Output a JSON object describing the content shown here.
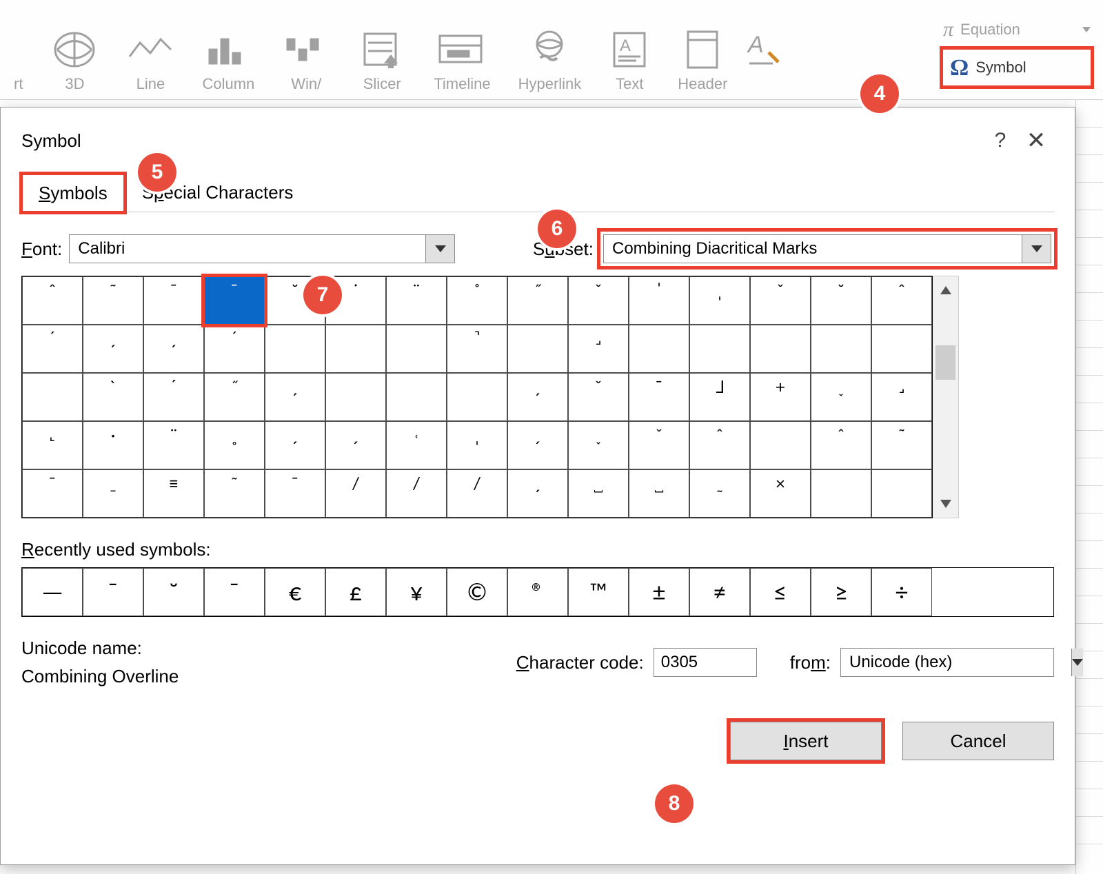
{
  "ribbon": {
    "groups": [
      {
        "label": "rt"
      },
      {
        "label": "3D"
      },
      {
        "label": "Line"
      },
      {
        "label": "Column"
      },
      {
        "label": "Win/"
      },
      {
        "label": "Slicer"
      },
      {
        "label": "Timeline"
      },
      {
        "label": "Hyperlink"
      },
      {
        "label": "Text"
      },
      {
        "label": "Header"
      }
    ],
    "equation_label": "Equation",
    "symbol_label": "Symbol"
  },
  "dialog": {
    "title": "Symbol",
    "tabs": {
      "symbols": "Symbols",
      "special": "Special Characters"
    },
    "font_label": "Font:",
    "font_value": "Calibri",
    "subset_label": "Subset:",
    "subset_value": "Combining Diacritical Marks",
    "grid_chars": [
      "ˆ",
      "˜",
      "ˉ",
      "ˉ",
      "˘",
      "˙",
      "¨",
      "˚",
      "˝",
      "ˇ",
      "ˈ",
      "ˌ",
      "ˇ",
      "˘",
      "ˆ",
      "ˊ",
      "ˏ",
      "ˏ",
      "ˊ",
      "",
      "",
      "",
      "˺",
      "",
      "˼",
      "",
      "",
      "",
      "",
      "",
      "",
      "ˋ",
      "ˊ",
      "˝",
      "ˏ",
      "",
      "",
      "",
      "ˏ",
      "ˬ",
      "ˉ",
      "˩",
      "+",
      "˯",
      "˼",
      "˻",
      "·",
      "¨",
      "˳",
      "ˏ",
      "ˏ",
      "˓",
      "ˌ",
      "ˏ",
      "˯",
      "ˇ",
      "ˆ",
      "",
      "ˆ",
      "˜",
      "ˉ",
      "ˍ",
      "≡",
      "˜",
      "ˉ",
      "/",
      "/",
      "/",
      "ˏ",
      "˽",
      "˽",
      "˷",
      "×"
    ],
    "selected_index": 3,
    "recent_label": "Recently used symbols:",
    "recent_chars": [
      "—",
      "ˉ",
      "˘",
      "ˉ",
      "€",
      "£",
      "¥",
      "©",
      "®",
      "™",
      "±",
      "≠",
      "≤",
      "≥",
      "÷"
    ],
    "unicode_name_label": "Unicode name:",
    "unicode_name": "Combining Overline",
    "char_code_label": "Character code:",
    "char_code": "0305",
    "from_label": "from:",
    "from_value": "Unicode (hex)",
    "insert": "Insert",
    "cancel": "Cancel"
  },
  "callouts": {
    "c4": "4",
    "c5": "5",
    "c6": "6",
    "c7": "7",
    "c8": "8"
  }
}
